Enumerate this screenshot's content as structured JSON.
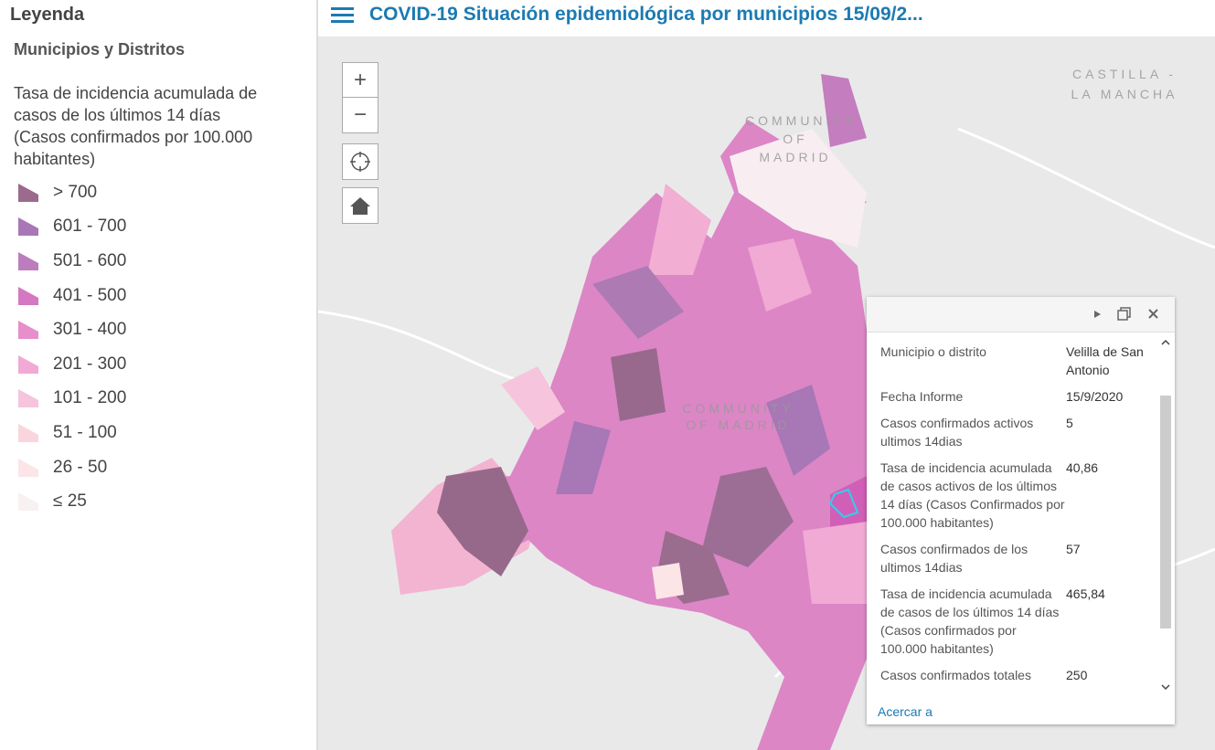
{
  "legend": {
    "title": "Leyenda",
    "layer": "Municipios y Distritos",
    "description": "Tasa de incidencia acumulada de casos de los últimos 14 días (Casos confirmados por 100.000 habitantes)",
    "items": [
      {
        "label": "> 700",
        "color": "#9b6a8c"
      },
      {
        "label": "601 - 700",
        "color": "#a877b5"
      },
      {
        "label": "501 - 600",
        "color": "#bb7dbe"
      },
      {
        "label": "401 - 500",
        "color": "#d478c3"
      },
      {
        "label": "301 - 400",
        "color": "#e68fcb"
      },
      {
        "label": "201 - 300",
        "color": "#f0aad4"
      },
      {
        "label": "101 - 200",
        "color": "#f6c4dc"
      },
      {
        "label": "51 - 100",
        "color": "#f9d5de"
      },
      {
        "label": "26 - 50",
        "color": "#fbe5e7"
      },
      {
        "label": "≤ 25",
        "color": "#f8f1f1"
      }
    ]
  },
  "header": {
    "title": "COVID-19 Situación epidemiológica por municipios 15/09/2..."
  },
  "map": {
    "controls": [
      "+",
      "−"
    ],
    "labels": [
      "CASTILLA - LA MANCHA",
      "COMMUNITY OF MADRID",
      "COMMUNITY OF MADRID"
    ]
  },
  "popup": {
    "fields": [
      {
        "label": "Municipio o distrito",
        "value": "Velilla de San Antonio"
      },
      {
        "label": "Fecha Informe",
        "value": "15/9/2020"
      },
      {
        "label": "Casos confirmados activos ultimos 14dias",
        "value": "5"
      },
      {
        "label": "Tasa de incidencia acumulada de casos activos de los últimos 14 días (Casos Confirmados por 100.000 habitantes)",
        "value": "40,86"
      },
      {
        "label": "Casos confirmados de los ultimos 14dias",
        "value": "57"
      },
      {
        "label": "Tasa de incidencia acumulada de casos de los últimos 14 días (Casos confirmados por 100.000 habitantes)",
        "value": "465,84"
      },
      {
        "label": "Casos confirmados totales",
        "value": "250"
      }
    ],
    "zoom_link": "Acercar a"
  }
}
